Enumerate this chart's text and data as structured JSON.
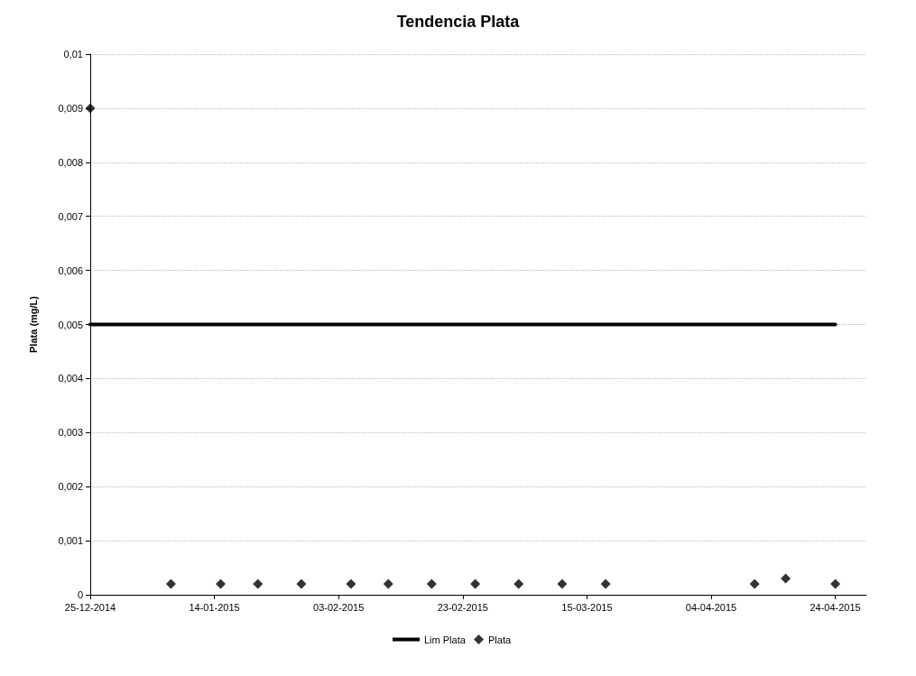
{
  "chart_data": {
    "type": "scatter",
    "title": "Tendencia Plata",
    "ylabel": "Plata (mg/L)",
    "xlim": [
      "2014-12-25",
      "2015-04-29"
    ],
    "xticks": [
      {
        "value": "2014-12-25",
        "label": "25-12-2014"
      },
      {
        "value": "2015-01-14",
        "label": "14-01-2015"
      },
      {
        "value": "2015-02-03",
        "label": "03-02-2015"
      },
      {
        "value": "2015-02-23",
        "label": "23-02-2015"
      },
      {
        "value": "2015-03-15",
        "label": "15-03-2015"
      },
      {
        "value": "2015-04-04",
        "label": "04-04-2015"
      },
      {
        "value": "2015-04-24",
        "label": "24-04-2015"
      }
    ],
    "ylim": [
      0,
      0.01
    ],
    "yticks": [
      {
        "value": 0,
        "label": "0"
      },
      {
        "value": 0.001,
        "label": "0,001"
      },
      {
        "value": 0.002,
        "label": "0,002"
      },
      {
        "value": 0.003,
        "label": "0,003"
      },
      {
        "value": 0.004,
        "label": "0,004"
      },
      {
        "value": 0.005,
        "label": "0,005"
      },
      {
        "value": 0.006,
        "label": "0,006"
      },
      {
        "value": 0.007,
        "label": "0,007"
      },
      {
        "value": 0.008,
        "label": "0,008"
      },
      {
        "value": 0.009,
        "label": "0,009"
      },
      {
        "value": 0.01,
        "label": "0,01"
      }
    ],
    "grid": "y",
    "legend": "bottom",
    "series": [
      {
        "name": "Lim Plata",
        "type": "line",
        "color": "#000000",
        "x": [
          "2014-12-25",
          "2015-04-24"
        ],
        "values": [
          0.005,
          0.005
        ]
      },
      {
        "name": "Plata",
        "marker": "diamond",
        "color": "#000000",
        "x": [
          "2014-12-25",
          "2015-01-07",
          "2015-01-15",
          "2015-01-21",
          "2015-01-28",
          "2015-02-05",
          "2015-02-11",
          "2015-02-18",
          "2015-02-25",
          "2015-03-04",
          "2015-03-11",
          "2015-03-18",
          "2015-04-11",
          "2015-04-16",
          "2015-04-24"
        ],
        "values": [
          0.009,
          0.0002,
          0.0002,
          0.0002,
          0.0002,
          0.0002,
          0.0002,
          0.0002,
          0.0002,
          0.0002,
          0.0002,
          0.0002,
          0.0002,
          0.0003,
          0.0002
        ]
      }
    ]
  }
}
